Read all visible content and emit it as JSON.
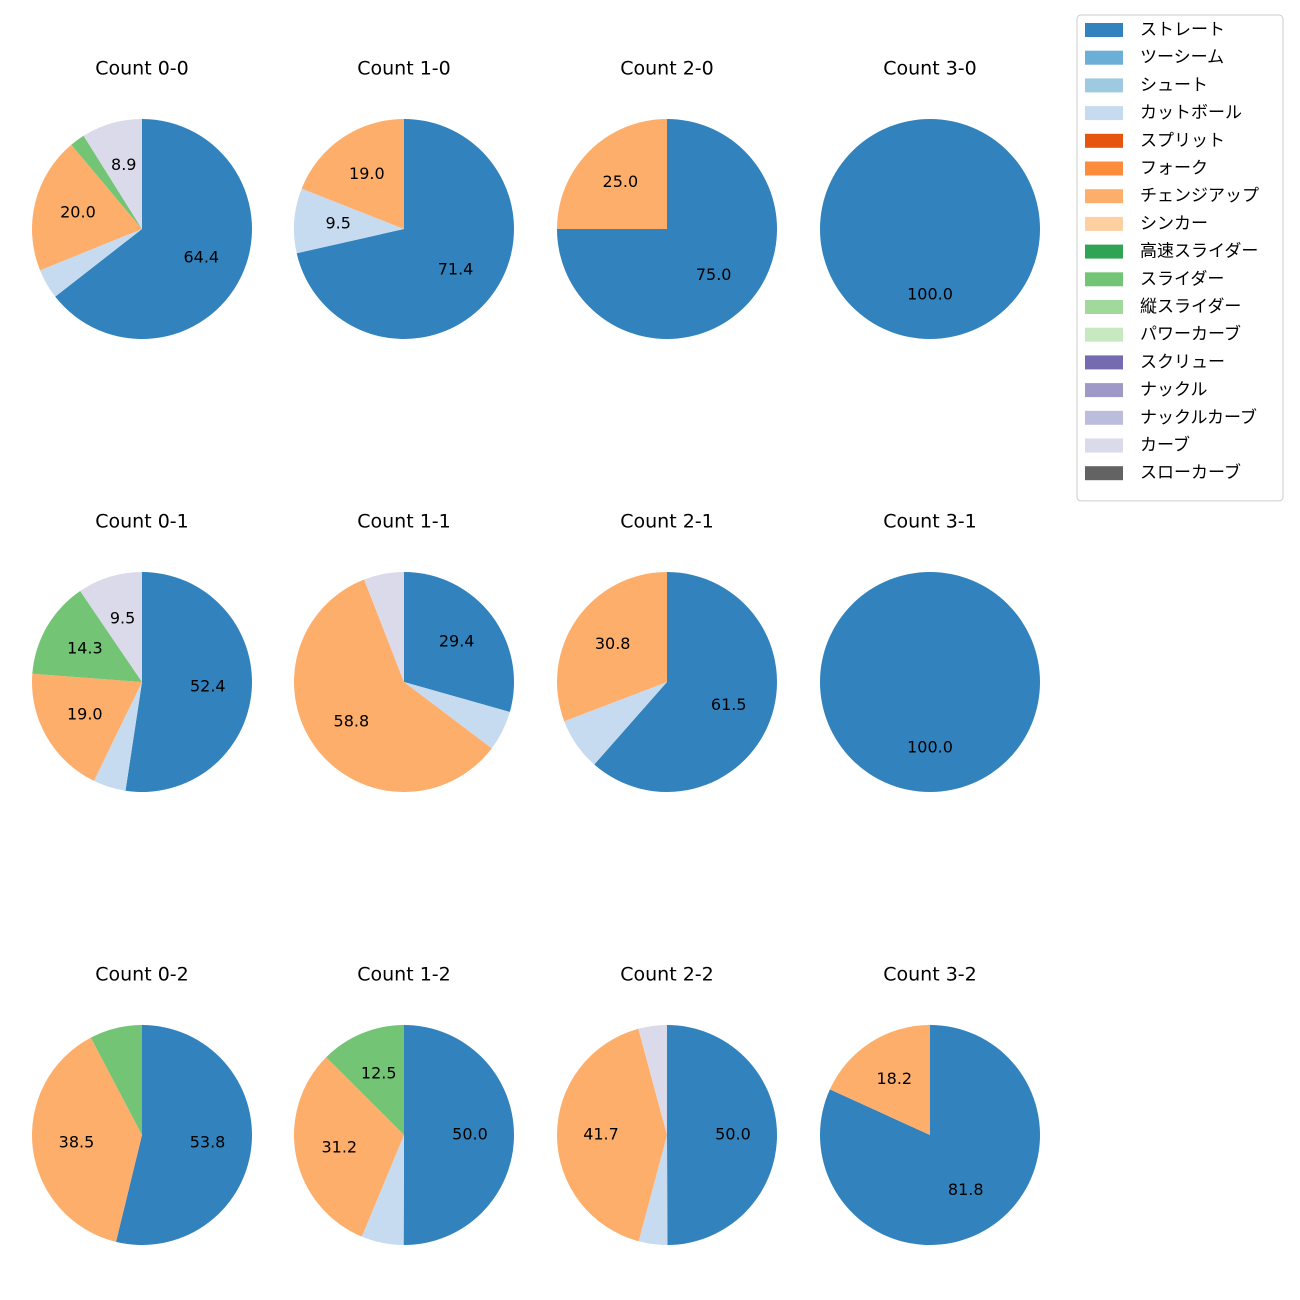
{
  "chart_data": [
    {
      "type": "pie",
      "title": "Count 0-0",
      "categories": [
        "ストレート",
        "カットボール",
        "チェンジアップ",
        "スライダー",
        "カーブ"
      ],
      "values": [
        64.4,
        4.4,
        20.0,
        2.2,
        8.9
      ],
      "value_labels": [
        "64.4",
        null,
        "20.0",
        null,
        "8.9"
      ],
      "colors": [
        "#3182bd",
        "#c6dbef",
        "#fdae6b",
        "#74c476",
        "#dadaeb"
      ]
    },
    {
      "type": "pie",
      "title": "Count 1-0",
      "categories": [
        "ストレート",
        "カットボール",
        "チェンジアップ"
      ],
      "values": [
        71.4,
        9.5,
        19.0
      ],
      "value_labels": [
        "71.4",
        "9.5",
        "19.0"
      ],
      "colors": [
        "#3182bd",
        "#c6dbef",
        "#fdae6b"
      ]
    },
    {
      "type": "pie",
      "title": "Count 2-0",
      "categories": [
        "ストレート",
        "チェンジアップ"
      ],
      "values": [
        75.0,
        25.0
      ],
      "value_labels": [
        "75.0",
        "25.0"
      ],
      "colors": [
        "#3182bd",
        "#fdae6b"
      ]
    },
    {
      "type": "pie",
      "title": "Count 3-0",
      "categories": [
        "ストレート"
      ],
      "values": [
        100.0
      ],
      "value_labels": [
        "100.0"
      ],
      "colors": [
        "#3182bd"
      ]
    },
    {
      "type": "pie",
      "title": "Count 0-1",
      "categories": [
        "ストレート",
        "カットボール",
        "チェンジアップ",
        "スライダー",
        "カーブ"
      ],
      "values": [
        52.4,
        4.8,
        19.0,
        14.3,
        9.5
      ],
      "value_labels": [
        "52.4",
        null,
        "19.0",
        "14.3",
        "9.5"
      ],
      "colors": [
        "#3182bd",
        "#c6dbef",
        "#fdae6b",
        "#74c476",
        "#dadaeb"
      ]
    },
    {
      "type": "pie",
      "title": "Count 1-1",
      "categories": [
        "ストレート",
        "カットボール",
        "チェンジアップ",
        "カーブ"
      ],
      "values": [
        29.4,
        5.9,
        58.8,
        5.9
      ],
      "value_labels": [
        "29.4",
        null,
        "58.8",
        null
      ],
      "colors": [
        "#3182bd",
        "#c6dbef",
        "#fdae6b",
        "#dadaeb"
      ]
    },
    {
      "type": "pie",
      "title": "Count 2-1",
      "categories": [
        "ストレート",
        "カットボール",
        "チェンジアップ"
      ],
      "values": [
        61.5,
        7.7,
        30.8
      ],
      "value_labels": [
        "61.5",
        null,
        "30.8"
      ],
      "colors": [
        "#3182bd",
        "#c6dbef",
        "#fdae6b"
      ]
    },
    {
      "type": "pie",
      "title": "Count 3-1",
      "categories": [
        "ストレート"
      ],
      "values": [
        100.0
      ],
      "value_labels": [
        "100.0"
      ],
      "colors": [
        "#3182bd"
      ]
    },
    {
      "type": "pie",
      "title": "Count 0-2",
      "categories": [
        "ストレート",
        "チェンジアップ",
        "スライダー"
      ],
      "values": [
        53.8,
        38.5,
        7.7
      ],
      "value_labels": [
        "53.8",
        "38.5",
        null
      ],
      "colors": [
        "#3182bd",
        "#fdae6b",
        "#74c476"
      ]
    },
    {
      "type": "pie",
      "title": "Count 1-2",
      "categories": [
        "ストレート",
        "カットボール",
        "チェンジアップ",
        "スライダー"
      ],
      "values": [
        50.0,
        6.2,
        31.2,
        12.5
      ],
      "value_labels": [
        "50.0",
        null,
        "31.2",
        "12.5"
      ],
      "colors": [
        "#3182bd",
        "#c6dbef",
        "#fdae6b",
        "#74c476"
      ]
    },
    {
      "type": "pie",
      "title": "Count 2-2",
      "categories": [
        "ストレート",
        "カットボール",
        "チェンジアップ",
        "カーブ"
      ],
      "values": [
        50.0,
        4.2,
        41.7,
        4.2
      ],
      "value_labels": [
        "50.0",
        null,
        "41.7",
        null
      ],
      "colors": [
        "#3182bd",
        "#c6dbef",
        "#fdae6b",
        "#dadaeb"
      ]
    },
    {
      "type": "pie",
      "title": "Count 3-2",
      "categories": [
        "ストレート",
        "チェンジアップ"
      ],
      "values": [
        81.8,
        18.2
      ],
      "value_labels": [
        "81.8",
        "18.2"
      ],
      "colors": [
        "#3182bd",
        "#fdae6b"
      ]
    }
  ],
  "legend": {
    "position": "upper right",
    "items": [
      {
        "name": "ストレート",
        "color": "#3182bd"
      },
      {
        "name": "ツーシーム",
        "color": "#6baed6"
      },
      {
        "name": "シュート",
        "color": "#9ecae1"
      },
      {
        "name": "カットボール",
        "color": "#c6dbef"
      },
      {
        "name": "スプリット",
        "color": "#e6550d"
      },
      {
        "name": "フォーク",
        "color": "#fd8d3c"
      },
      {
        "name": "チェンジアップ",
        "color": "#fdae6b"
      },
      {
        "name": "シンカー",
        "color": "#fdd0a2"
      },
      {
        "name": "高速スライダー",
        "color": "#31a354"
      },
      {
        "name": "スライダー",
        "color": "#74c476"
      },
      {
        "name": "縦スライダー",
        "color": "#a1d99b"
      },
      {
        "name": "パワーカーブ",
        "color": "#c7e9c0"
      },
      {
        "name": "スクリュー",
        "color": "#756bb1"
      },
      {
        "name": "ナックル",
        "color": "#9e9ac8"
      },
      {
        "name": "ナックルカーブ",
        "color": "#bcbddc"
      },
      {
        "name": "カーブ",
        "color": "#dadaeb"
      },
      {
        "name": "スローカーブ",
        "color": "#636363"
      }
    ]
  }
}
